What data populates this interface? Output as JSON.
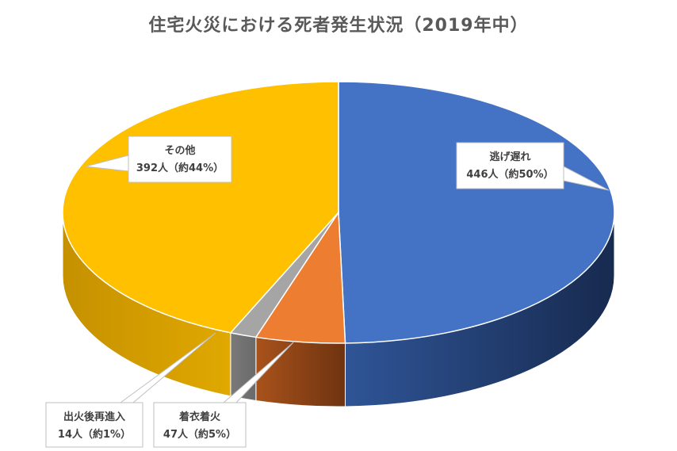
{
  "chart_data": {
    "type": "pie",
    "title": "住宅火災における死者発生状況（2019年中）",
    "unit": "人",
    "slices": [
      {
        "label": "逃げ遅れ",
        "value": 446,
        "percent_label": "446人（約50%）",
        "color": "#4472C4",
        "side_color": "#203864"
      },
      {
        "label": "着衣着火",
        "value": 47,
        "percent_label": "47人（約5%）",
        "color": "#ED7D31",
        "side_color": "#843C0C"
      },
      {
        "label": "出火後再進入",
        "value": 14,
        "percent_label": "14人（約1%）",
        "color": "#A5A5A5",
        "side_color": "#595959"
      },
      {
        "label": "その他",
        "value": 392,
        "percent_label": "392人（約44%）",
        "color": "#FFC000",
        "side_color": "#BF8F00"
      }
    ],
    "legend": "none",
    "style": "3d-pie"
  }
}
